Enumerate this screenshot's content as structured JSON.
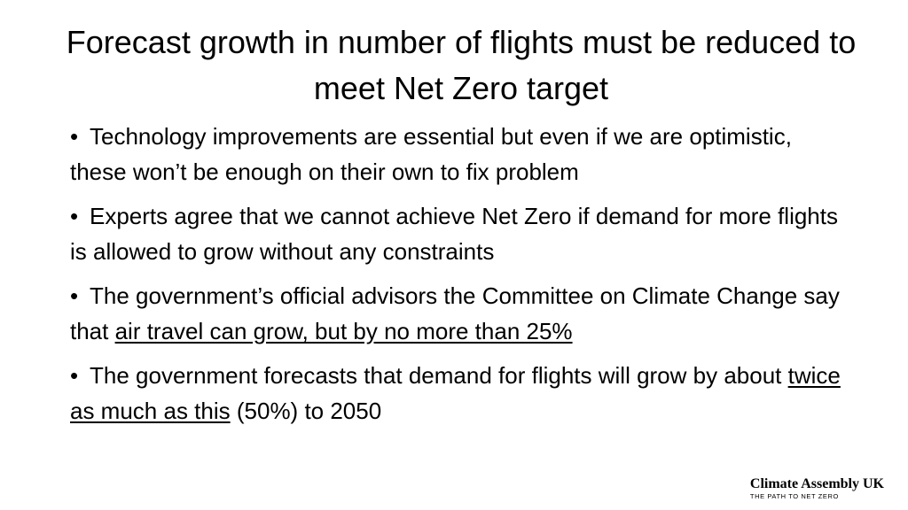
{
  "slide": {
    "title": "Forecast growth in number of flights must be reduced to meet Net Zero target",
    "bullets": [
      {
        "marker": "•",
        "text": "Technology improvements are essential but even if we are optimistic, these won’t be enough on their own to fix problem"
      },
      {
        "marker": "•",
        "text": "Experts agree that we cannot achieve Net Zero if demand for more flights is allowed to grow without any constraints"
      },
      {
        "marker": "•",
        "text_before": "The government’s official advisors the Committee on Climate Change say that ",
        "underlined": "air travel can grow, but by no more than 25%",
        "text_after": ""
      },
      {
        "marker": "•",
        "text_before": "The government forecasts that demand for flights will grow by about ",
        "underlined": "twice as much as this",
        "text_after": " (50%) to 2050"
      }
    ]
  },
  "logo": {
    "name": "Climate Assembly UK",
    "tagline": "THE PATH TO NET ZERO"
  }
}
